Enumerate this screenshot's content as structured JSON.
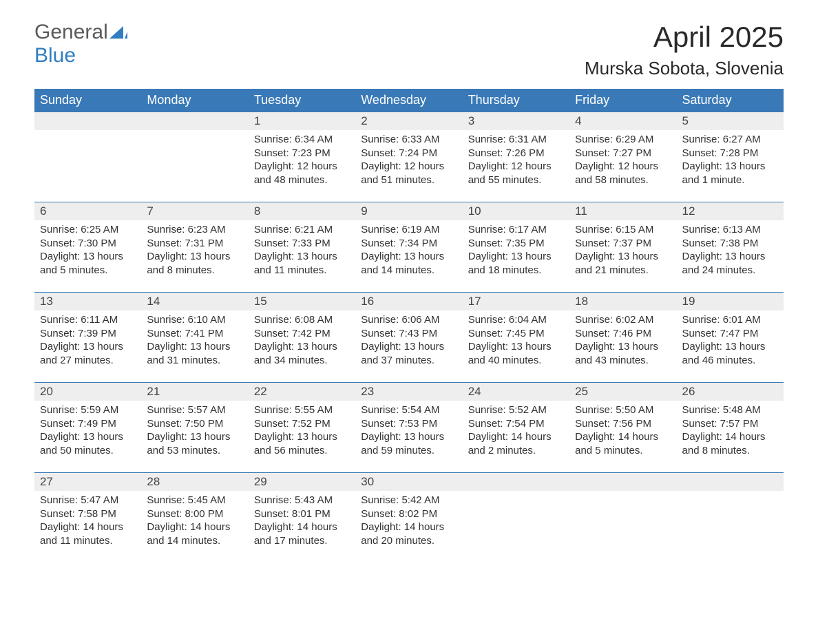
{
  "logo": {
    "word1": "General",
    "word2": "Blue",
    "color_general": "#5a5a5a",
    "color_blue": "#2f7dc0"
  },
  "title": {
    "month": "April 2025",
    "location": "Murska Sobota, Slovenia"
  },
  "colors": {
    "header_bg": "#3a79b7",
    "header_text": "#ffffff",
    "daybar_bg": "#eeeeee",
    "rule": "#3a79b7",
    "text": "#333333",
    "background": "#ffffff"
  },
  "fonts": {
    "title_size_pt": 32,
    "location_size_pt": 20,
    "header_size_pt": 14,
    "cell_size_pt": 11
  },
  "weekdays": [
    "Sunday",
    "Monday",
    "Tuesday",
    "Wednesday",
    "Thursday",
    "Friday",
    "Saturday"
  ],
  "weeks": [
    [
      {
        "day": "",
        "lines": []
      },
      {
        "day": "",
        "lines": []
      },
      {
        "day": "1",
        "lines": [
          "Sunrise: 6:34 AM",
          "Sunset: 7:23 PM",
          "Daylight: 12 hours and 48 minutes."
        ]
      },
      {
        "day": "2",
        "lines": [
          "Sunrise: 6:33 AM",
          "Sunset: 7:24 PM",
          "Daylight: 12 hours and 51 minutes."
        ]
      },
      {
        "day": "3",
        "lines": [
          "Sunrise: 6:31 AM",
          "Sunset: 7:26 PM",
          "Daylight: 12 hours and 55 minutes."
        ]
      },
      {
        "day": "4",
        "lines": [
          "Sunrise: 6:29 AM",
          "Sunset: 7:27 PM",
          "Daylight: 12 hours and 58 minutes."
        ]
      },
      {
        "day": "5",
        "lines": [
          "Sunrise: 6:27 AM",
          "Sunset: 7:28 PM",
          "Daylight: 13 hours and 1 minute."
        ]
      }
    ],
    [
      {
        "day": "6",
        "lines": [
          "Sunrise: 6:25 AM",
          "Sunset: 7:30 PM",
          "Daylight: 13 hours and 5 minutes."
        ]
      },
      {
        "day": "7",
        "lines": [
          "Sunrise: 6:23 AM",
          "Sunset: 7:31 PM",
          "Daylight: 13 hours and 8 minutes."
        ]
      },
      {
        "day": "8",
        "lines": [
          "Sunrise: 6:21 AM",
          "Sunset: 7:33 PM",
          "Daylight: 13 hours and 11 minutes."
        ]
      },
      {
        "day": "9",
        "lines": [
          "Sunrise: 6:19 AM",
          "Sunset: 7:34 PM",
          "Daylight: 13 hours and 14 minutes."
        ]
      },
      {
        "day": "10",
        "lines": [
          "Sunrise: 6:17 AM",
          "Sunset: 7:35 PM",
          "Daylight: 13 hours and 18 minutes."
        ]
      },
      {
        "day": "11",
        "lines": [
          "Sunrise: 6:15 AM",
          "Sunset: 7:37 PM",
          "Daylight: 13 hours and 21 minutes."
        ]
      },
      {
        "day": "12",
        "lines": [
          "Sunrise: 6:13 AM",
          "Sunset: 7:38 PM",
          "Daylight: 13 hours and 24 minutes."
        ]
      }
    ],
    [
      {
        "day": "13",
        "lines": [
          "Sunrise: 6:11 AM",
          "Sunset: 7:39 PM",
          "Daylight: 13 hours and 27 minutes."
        ]
      },
      {
        "day": "14",
        "lines": [
          "Sunrise: 6:10 AM",
          "Sunset: 7:41 PM",
          "Daylight: 13 hours and 31 minutes."
        ]
      },
      {
        "day": "15",
        "lines": [
          "Sunrise: 6:08 AM",
          "Sunset: 7:42 PM",
          "Daylight: 13 hours and 34 minutes."
        ]
      },
      {
        "day": "16",
        "lines": [
          "Sunrise: 6:06 AM",
          "Sunset: 7:43 PM",
          "Daylight: 13 hours and 37 minutes."
        ]
      },
      {
        "day": "17",
        "lines": [
          "Sunrise: 6:04 AM",
          "Sunset: 7:45 PM",
          "Daylight: 13 hours and 40 minutes."
        ]
      },
      {
        "day": "18",
        "lines": [
          "Sunrise: 6:02 AM",
          "Sunset: 7:46 PM",
          "Daylight: 13 hours and 43 minutes."
        ]
      },
      {
        "day": "19",
        "lines": [
          "Sunrise: 6:01 AM",
          "Sunset: 7:47 PM",
          "Daylight: 13 hours and 46 minutes."
        ]
      }
    ],
    [
      {
        "day": "20",
        "lines": [
          "Sunrise: 5:59 AM",
          "Sunset: 7:49 PM",
          "Daylight: 13 hours and 50 minutes."
        ]
      },
      {
        "day": "21",
        "lines": [
          "Sunrise: 5:57 AM",
          "Sunset: 7:50 PM",
          "Daylight: 13 hours and 53 minutes."
        ]
      },
      {
        "day": "22",
        "lines": [
          "Sunrise: 5:55 AM",
          "Sunset: 7:52 PM",
          "Daylight: 13 hours and 56 minutes."
        ]
      },
      {
        "day": "23",
        "lines": [
          "Sunrise: 5:54 AM",
          "Sunset: 7:53 PM",
          "Daylight: 13 hours and 59 minutes."
        ]
      },
      {
        "day": "24",
        "lines": [
          "Sunrise: 5:52 AM",
          "Sunset: 7:54 PM",
          "Daylight: 14 hours and 2 minutes."
        ]
      },
      {
        "day": "25",
        "lines": [
          "Sunrise: 5:50 AM",
          "Sunset: 7:56 PM",
          "Daylight: 14 hours and 5 minutes."
        ]
      },
      {
        "day": "26",
        "lines": [
          "Sunrise: 5:48 AM",
          "Sunset: 7:57 PM",
          "Daylight: 14 hours and 8 minutes."
        ]
      }
    ],
    [
      {
        "day": "27",
        "lines": [
          "Sunrise: 5:47 AM",
          "Sunset: 7:58 PM",
          "Daylight: 14 hours and 11 minutes."
        ]
      },
      {
        "day": "28",
        "lines": [
          "Sunrise: 5:45 AM",
          "Sunset: 8:00 PM",
          "Daylight: 14 hours and 14 minutes."
        ]
      },
      {
        "day": "29",
        "lines": [
          "Sunrise: 5:43 AM",
          "Sunset: 8:01 PM",
          "Daylight: 14 hours and 17 minutes."
        ]
      },
      {
        "day": "30",
        "lines": [
          "Sunrise: 5:42 AM",
          "Sunset: 8:02 PM",
          "Daylight: 14 hours and 20 minutes."
        ]
      },
      {
        "day": "",
        "lines": []
      },
      {
        "day": "",
        "lines": []
      },
      {
        "day": "",
        "lines": []
      }
    ]
  ]
}
